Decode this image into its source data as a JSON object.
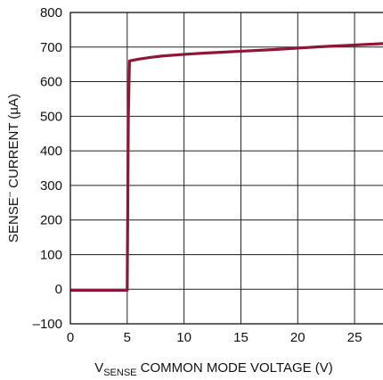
{
  "chart_data": {
    "type": "line",
    "title": "",
    "xlabel": {
      "main": "V",
      "sub": "SENSE",
      "rest": " COMMON MODE VOLTAGE (V)"
    },
    "ylabel": {
      "main": "SENSE",
      "sup": "–",
      "rest": " CURRENT (µA)"
    },
    "xlim": [
      0,
      27.5
    ],
    "ylim": [
      -100,
      800
    ],
    "x_ticks": [
      0,
      5,
      10,
      15,
      20,
      25
    ],
    "x_tick_labels": [
      "0",
      "5",
      "10",
      "15",
      "20",
      "25"
    ],
    "y_ticks": [
      -100,
      0,
      100,
      200,
      300,
      400,
      500,
      600,
      700,
      800
    ],
    "y_tick_labels": [
      "–100",
      "0",
      "100",
      "200",
      "300",
      "400",
      "500",
      "600",
      "700",
      "800"
    ],
    "grid": true,
    "legend": "none",
    "series": [
      {
        "color": "#8c1736",
        "x": [
          0,
          5.0,
          5.1,
          5.2,
          6,
          7,
          8,
          10,
          12,
          15,
          18,
          20,
          22,
          25,
          27.5
        ],
        "y": [
          -3,
          -3,
          500,
          660,
          665,
          670,
          674,
          679,
          683,
          688,
          693,
          697,
          701,
          706,
          710
        ]
      }
    ]
  }
}
